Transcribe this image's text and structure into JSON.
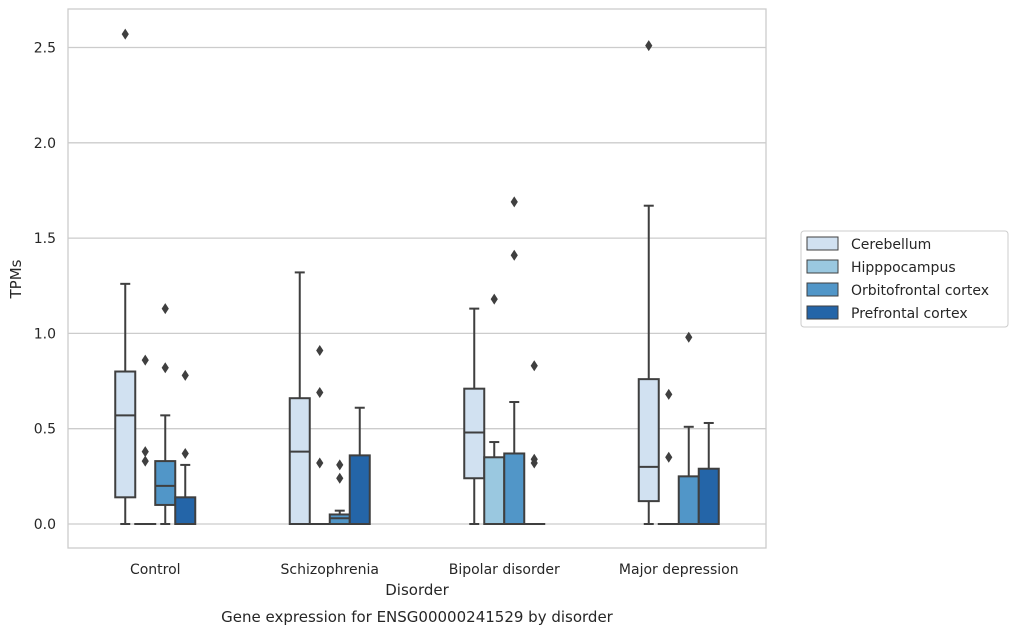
{
  "chart_data": {
    "type": "boxplot",
    "xlabel": "Disorder",
    "ylabel": "TPMs",
    "caption": "Gene expression for ENSG00000241529 by disorder",
    "ylim": [
      -0.125,
      2.7
    ],
    "yticks": [
      "0.0",
      "0.5",
      "1.0",
      "1.5",
      "2.0",
      "2.5"
    ],
    "ytick_values": [
      0,
      0.5,
      1.0,
      1.5,
      2.0,
      2.5
    ],
    "grid": true,
    "legend_position": "right",
    "categories": [
      "Control",
      "Schizophrenia",
      "Bipolar disorder",
      "Major depression"
    ],
    "series": [
      {
        "name": "Cerebellum",
        "color": "#d1e1f1",
        "boxes": [
          {
            "whislo": 0,
            "q1": 0.14,
            "med": 0.57,
            "q3": 0.8,
            "whishi": 1.26,
            "fliers": [
              2.57
            ]
          },
          {
            "whislo": 0,
            "q1": 0,
            "med": 0.38,
            "q3": 0.66,
            "whishi": 1.32,
            "fliers": []
          },
          {
            "whislo": 0,
            "q1": 0.24,
            "med": 0.48,
            "q3": 0.71,
            "whishi": 1.13,
            "fliers": []
          },
          {
            "whislo": 0,
            "q1": 0.12,
            "med": 0.3,
            "q3": 0.76,
            "whishi": 1.67,
            "fliers": [
              2.51
            ]
          }
        ]
      },
      {
        "name": "Hipppocampus",
        "color": "#9ac8e0",
        "boxes": [
          {
            "whislo": 0,
            "q1": 0,
            "med": 0,
            "q3": 0,
            "whishi": 0,
            "fliers": [
              0.33,
              0.38,
              0.86
            ]
          },
          {
            "whislo": 0,
            "q1": 0,
            "med": 0,
            "q3": 0,
            "whishi": 0,
            "fliers": [
              0.32,
              0.69,
              0.91
            ]
          },
          {
            "whislo": 0,
            "q1": 0,
            "med": 0,
            "q3": 0.35,
            "whishi": 0.43,
            "fliers": [
              1.18
            ]
          },
          {
            "whislo": 0,
            "q1": 0,
            "med": 0,
            "q3": 0,
            "whishi": 0,
            "fliers": [
              0.35,
              0.68
            ]
          }
        ]
      },
      {
        "name": "Orbitofrontal cortex",
        "color": "#5196c8",
        "boxes": [
          {
            "whislo": 0,
            "q1": 0.1,
            "med": 0.2,
            "q3": 0.33,
            "whishi": 0.57,
            "fliers": [
              0.82,
              1.13
            ]
          },
          {
            "whislo": 0,
            "q1": 0,
            "med": 0.03,
            "q3": 0.05,
            "whishi": 0.07,
            "fliers": [
              0.24,
              0.31
            ]
          },
          {
            "whislo": 0,
            "q1": 0,
            "med": 0,
            "q3": 0.37,
            "whishi": 0.64,
            "fliers": [
              1.41,
              1.69
            ]
          },
          {
            "whislo": 0,
            "q1": 0,
            "med": 0,
            "q3": 0.25,
            "whishi": 0.51,
            "fliers": [
              0.98
            ]
          }
        ]
      },
      {
        "name": "Prefrontal cortex",
        "color": "#2465a8",
        "boxes": [
          {
            "whislo": 0,
            "q1": 0,
            "med": 0,
            "q3": 0.14,
            "whishi": 0.31,
            "fliers": [
              0.37,
              0.78
            ]
          },
          {
            "whislo": 0,
            "q1": 0,
            "med": 0,
            "q3": 0.36,
            "whishi": 0.61,
            "fliers": []
          },
          {
            "whislo": 0,
            "q1": 0,
            "med": 0,
            "q3": 0,
            "whishi": 0,
            "fliers": [
              0.32,
              0.34,
              0.83
            ]
          },
          {
            "whislo": 0,
            "q1": 0,
            "med": 0,
            "q3": 0.29,
            "whishi": 0.53,
            "fliers": []
          }
        ]
      }
    ]
  }
}
